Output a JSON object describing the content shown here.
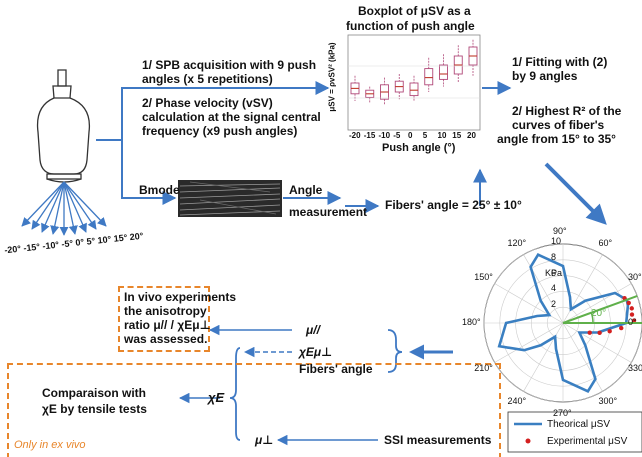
{
  "probe": {
    "angle_labels": [
      "-20°",
      "-15°",
      "-10°",
      "-5°",
      "0°",
      "5°",
      "10°",
      "15°",
      "20°"
    ]
  },
  "boxplot": {
    "title_line1": "Boxplot of μSV as a",
    "title_line2": "function of push angle",
    "xlabel": "Push angle (°)",
    "ylabel": "μSV = ρvSV² (kPa)",
    "colors": {
      "box": "#b04878",
      "median": "#c0392b"
    }
  },
  "chart_data": {
    "type": "box",
    "title": "Boxplot of μSV as a function of push angle",
    "xlabel": "Push angle (°)",
    "ylabel": "μSV = ρvSV² (kPa)",
    "categories": [
      "-20",
      "-15",
      "-10",
      "-5",
      "0",
      "5",
      "10",
      "15",
      "20"
    ],
    "boxes": [
      {
        "min": 0.3,
        "q1": 0.38,
        "median": 0.44,
        "q3": 0.5,
        "max": 0.58
      },
      {
        "min": 0.28,
        "q1": 0.34,
        "median": 0.38,
        "q3": 0.42,
        "max": 0.46
      },
      {
        "min": 0.26,
        "q1": 0.32,
        "median": 0.4,
        "q3": 0.48,
        "max": 0.56
      },
      {
        "min": 0.32,
        "q1": 0.4,
        "median": 0.46,
        "q3": 0.52,
        "max": 0.6
      },
      {
        "min": 0.3,
        "q1": 0.36,
        "median": 0.42,
        "q3": 0.5,
        "max": 0.58
      },
      {
        "min": 0.4,
        "q1": 0.48,
        "median": 0.56,
        "q3": 0.66,
        "max": 0.78
      },
      {
        "min": 0.46,
        "q1": 0.54,
        "median": 0.6,
        "q3": 0.7,
        "max": 0.82
      },
      {
        "min": 0.5,
        "q1": 0.6,
        "median": 0.7,
        "q3": 0.8,
        "max": 0.92
      },
      {
        "min": 0.58,
        "q1": 0.7,
        "median": 0.8,
        "q3": 0.9,
        "max": 0.98
      }
    ]
  },
  "steps": {
    "spb_line1": "1/ SPB acquisition with 9 push",
    "spb_line2": "angles (x 5 repetitions)",
    "phase_line1": "2/ Phase velocity (vSV)",
    "phase_line2": "calculation  at the signal central",
    "phase_line3": "frequency (x9 push angles)",
    "fit_line1": "1/ Fitting with (2)",
    "fit_line2": "by 9 angles",
    "r2_line1": "2/ Highest R² of the",
    "r2_line2": "curves of fiber's",
    "r2_line3": "angle from 15° to 35°",
    "bmode": "Bmode",
    "angle_meas_line1": "Angle",
    "angle_meas_line2": "measurement",
    "fibers_angle": "Fibers' angle = 25° ± 10°"
  },
  "polar": {
    "unit": "KPa",
    "radial_ticks": [
      "2",
      "4",
      "6",
      "8",
      "10"
    ],
    "angle_labels": [
      "90°",
      "60°",
      "30°",
      "0°",
      "330°",
      "300°",
      "270°",
      "240°",
      "210°",
      "180°",
      "150°",
      "120°"
    ],
    "marked_angle": "20°",
    "theoretical_curve": [
      {
        "deg": 0,
        "kpa": 8.0
      },
      {
        "deg": 15,
        "kpa": 8.5
      },
      {
        "deg": 20,
        "kpa": 8.6
      },
      {
        "deg": 30,
        "kpa": 7.6
      },
      {
        "deg": 45,
        "kpa": 4.0
      },
      {
        "deg": 60,
        "kpa": 2.0
      },
      {
        "deg": 75,
        "kpa": 3.4
      },
      {
        "deg": 90,
        "kpa": 7.2
      },
      {
        "deg": 110,
        "kpa": 9.2
      },
      {
        "deg": 120,
        "kpa": 8.2
      },
      {
        "deg": 135,
        "kpa": 4.0
      },
      {
        "deg": 150,
        "kpa": 2.0
      },
      {
        "deg": 165,
        "kpa": 3.4
      },
      {
        "deg": 180,
        "kpa": 7.2
      },
      {
        "deg": 200,
        "kpa": 8.6
      },
      {
        "deg": 215,
        "kpa": 6.0
      },
      {
        "deg": 225,
        "kpa": 4.0
      },
      {
        "deg": 240,
        "kpa": 2.0
      },
      {
        "deg": 255,
        "kpa": 3.4
      },
      {
        "deg": 270,
        "kpa": 7.2
      },
      {
        "deg": 290,
        "kpa": 9.2
      },
      {
        "deg": 300,
        "kpa": 8.2
      },
      {
        "deg": 315,
        "kpa": 4.0
      },
      {
        "deg": 330,
        "kpa": 2.4
      },
      {
        "deg": 345,
        "kpa": 4.6
      }
    ],
    "experimental_points": [
      {
        "deg": 2,
        "kpa": 9.0
      },
      {
        "deg": 7,
        "kpa": 8.8
      },
      {
        "deg": 12,
        "kpa": 8.9
      },
      {
        "deg": 17,
        "kpa": 8.7
      },
      {
        "deg": 22,
        "kpa": 8.4
      },
      {
        "deg": 355,
        "kpa": 7.4
      },
      {
        "deg": 350,
        "kpa": 6.0
      },
      {
        "deg": 345,
        "kpa": 4.8
      },
      {
        "deg": 340,
        "kpa": 3.6
      }
    ],
    "legend_theorical": "Theorical μSV",
    "legend_experimental": "Experimental μSV",
    "colors": {
      "curve": "#3a7fc1",
      "points": "#d42020",
      "angle_line": "#5fb04a"
    }
  },
  "results": {
    "invivo_line1": "In vivo experiments",
    "invivo_line2": "the anisotropy",
    "invivo_line3": "ratio μ// / χEμ⊥",
    "invivo_line4": "was assessed.",
    "mu_parallel": "μ//",
    "chi_mu_perp": "χEμ⊥",
    "fibers_angle_short": "Fibers' angle",
    "chi_e": "χE",
    "mu_perp": "μ⊥",
    "compare_line1": "Comparaison with",
    "compare_line2": "χE by tensile tests",
    "only_ex_vivo": "Only in ex vivo",
    "ssi": "SSI measurements"
  },
  "colors": {
    "arrow": "#3f79c4",
    "dashed_border": "#e8862b",
    "only_ex_vivo": "#e8862b"
  }
}
